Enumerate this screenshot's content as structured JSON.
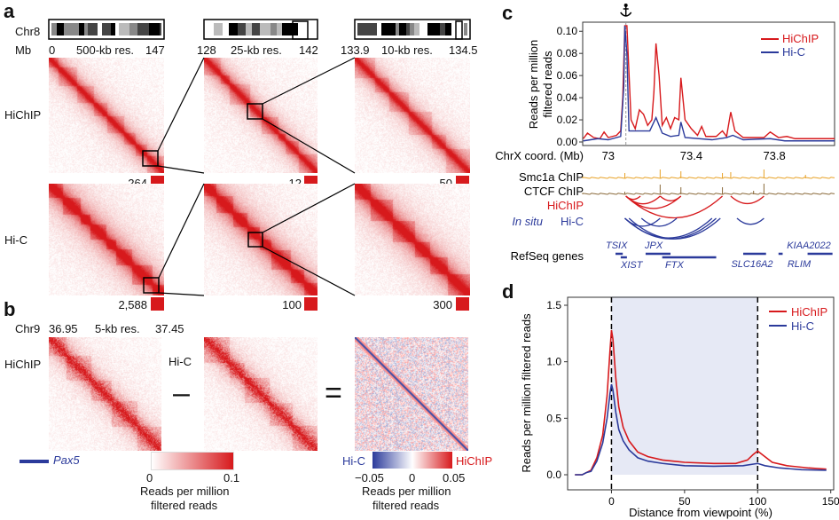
{
  "panels": {
    "a": "a",
    "b": "b",
    "c": "c",
    "d": "d"
  },
  "a": {
    "chrom": "Chr8",
    "unit": "Mb",
    "columns": [
      {
        "start": "0",
        "res": "500-kb res.",
        "end": "147",
        "max_hichip": "264",
        "max_hic": "2,588"
      },
      {
        "start": "128",
        "res": "25-kb res.",
        "end": "142",
        "max_hichip": "12",
        "max_hic": "100"
      },
      {
        "start": "133.9",
        "res": "10-kb res.",
        "end": "134.5",
        "max_hichip": "50",
        "max_hic": "300"
      }
    ],
    "rows": [
      "HiChIP",
      "Hi-C"
    ]
  },
  "b": {
    "chrom": "Chr9",
    "start": "36.95",
    "res": "5-kb res.",
    "end": "37.45",
    "label_hichip": "HiChIP",
    "label_hic": "Hi-C",
    "minus": "–",
    "equals": "=",
    "gene": "Pax5",
    "colorbar1": {
      "min": "0",
      "max": "0.1",
      "label1": "Reads per million",
      "label2": "filtered reads",
      "colors": [
        "#ffffff",
        "#d7191c"
      ]
    },
    "colorbar2": {
      "left": "Hi-C",
      "right": "HiChIP",
      "ticks": [
        "−0.05",
        "0",
        "0.05"
      ],
      "label1": "Reads per million",
      "label2": "filtered reads",
      "colors": [
        "#2b3a9b",
        "#ffffff",
        "#d7191c"
      ]
    }
  },
  "colors": {
    "hichip": "#d7191c",
    "hic": "#2b3a9b",
    "smc1a": "#e8a227",
    "ctcf": "#8a6a3a",
    "shade": "#e6e9f5"
  },
  "chart_data": [
    {
      "type": "line",
      "panel": "c",
      "ylabel": "Reads per million filtered reads",
      "ylim": [
        0,
        0.105
      ],
      "yticks": [
        "0.00",
        "0.02",
        "0.04",
        "0.06",
        "0.08",
        "0.10"
      ],
      "xlabel": "ChrX coord. (Mb)",
      "xlim": [
        72.877,
        74.09
      ],
      "xticks": [
        "73",
        "73.4",
        "73.8"
      ],
      "anchor_icon": "anchor-icon",
      "anchor": 73.085,
      "legend": "top-right",
      "series": [
        {
          "name": "HiChIP",
          "points": [
            [
              72.88,
              0.003
            ],
            [
              72.9,
              0.008
            ],
            [
              72.93,
              0.004
            ],
            [
              72.96,
              0.003
            ],
            [
              72.98,
              0.009
            ],
            [
              73.0,
              0.004
            ],
            [
              73.04,
              0.006
            ],
            [
              73.06,
              0.01
            ],
            [
              73.07,
              0.04
            ],
            [
              73.08,
              0.105
            ],
            [
              73.09,
              0.105
            ],
            [
              73.1,
              0.062
            ],
            [
              73.11,
              0.02
            ],
            [
              73.13,
              0.012
            ],
            [
              73.15,
              0.029
            ],
            [
              73.17,
              0.025
            ],
            [
              73.19,
              0.015
            ],
            [
              73.21,
              0.02
            ],
            [
              73.22,
              0.045
            ],
            [
              73.23,
              0.089
            ],
            [
              73.245,
              0.06
            ],
            [
              73.26,
              0.015
            ],
            [
              73.28,
              0.022
            ],
            [
              73.3,
              0.012
            ],
            [
              73.32,
              0.022
            ],
            [
              73.34,
              0.02
            ],
            [
              73.35,
              0.058
            ],
            [
              73.37,
              0.02
            ],
            [
              73.4,
              0.012
            ],
            [
              73.43,
              0.006
            ],
            [
              73.45,
              0.014
            ],
            [
              73.47,
              0.005
            ],
            [
              73.52,
              0.005
            ],
            [
              73.55,
              0.01
            ],
            [
              73.57,
              0.005
            ],
            [
              73.59,
              0.027
            ],
            [
              73.61,
              0.01
            ],
            [
              73.65,
              0.004
            ],
            [
              73.75,
              0.004
            ],
            [
              73.78,
              0.009
            ],
            [
              73.82,
              0.004
            ],
            [
              73.86,
              0.005
            ],
            [
              73.9,
              0.003
            ],
            [
              74.09,
              0.003
            ]
          ]
        },
        {
          "name": "Hi-C",
          "points": [
            [
              72.88,
              0.001
            ],
            [
              72.95,
              0.003
            ],
            [
              73.0,
              0.002
            ],
            [
              73.06,
              0.005
            ],
            [
              73.075,
              0.05
            ],
            [
              73.08,
              0.105
            ],
            [
              73.09,
              0.08
            ],
            [
              73.1,
              0.01
            ],
            [
              73.13,
              0.01
            ],
            [
              73.2,
              0.01
            ],
            [
              73.23,
              0.022
            ],
            [
              73.26,
              0.008
            ],
            [
              73.3,
              0.005
            ],
            [
              73.34,
              0.006
            ],
            [
              73.35,
              0.018
            ],
            [
              73.37,
              0.004
            ],
            [
              73.5,
              0.002
            ],
            [
              73.57,
              0.004
            ],
            [
              73.6,
              0.006
            ],
            [
              73.65,
              0.002
            ],
            [
              73.78,
              0.003
            ],
            [
              73.85,
              0.001
            ],
            [
              74.09,
              0.001
            ]
          ]
        }
      ],
      "tracks": {
        "smc1a": "Smc1a ChIP",
        "ctcf": "CTCF ChIP",
        "hichip": "HiChIP",
        "hic_prefix": "In situ",
        "hic": "Hi-C",
        "genes": "RefSeq genes"
      },
      "loops_hichip": [
        [
          73.085,
          73.155
        ],
        [
          73.085,
          73.25
        ],
        [
          73.085,
          73.35
        ],
        [
          73.085,
          73.55
        ],
        [
          73.25,
          73.35
        ],
        [
          73.59,
          73.75
        ]
      ],
      "loops_hic": [
        [
          73.08,
          73.25
        ],
        [
          73.16,
          73.33
        ],
        [
          73.08,
          73.5
        ],
        [
          73.08,
          73.52
        ],
        [
          73.1,
          73.54
        ],
        [
          73.62,
          73.75
        ]
      ],
      "genes": [
        {
          "name": "TSIX",
          "start": 73.035,
          "end": 73.07
        },
        {
          "name": "XIST",
          "start": 73.06,
          "end": 73.09
        },
        {
          "name": "JPX",
          "start": 73.18,
          "end": 73.3
        },
        {
          "name": "FTX",
          "start": 73.26,
          "end": 73.52
        },
        {
          "name": "SLC16A2",
          "start": 73.65,
          "end": 73.76
        },
        {
          "name": "RLIM",
          "start": 73.82,
          "end": 73.84
        },
        {
          "name": "KIAA2022",
          "start": 73.96,
          "end": 74.08
        }
      ]
    },
    {
      "type": "line",
      "panel": "d",
      "ylabel": "Reads per million filtered reads",
      "ylim": [
        0,
        1.5
      ],
      "yticks": [
        "0.0",
        "0.5",
        "1.0",
        "1.5"
      ],
      "xlabel": "Distance from viewpoint (%)",
      "xlim": [
        -30,
        152
      ],
      "xticks": [
        "0",
        "50",
        "100",
        "150"
      ],
      "vlines": [
        0,
        100
      ],
      "shaded": [
        0,
        100
      ],
      "legend": "top-right",
      "series": [
        {
          "name": "HiChIP",
          "points": [
            [
              -25,
              0
            ],
            [
              -20,
              0
            ],
            [
              -17,
              0.02
            ],
            [
              -14,
              0.04
            ],
            [
              -10,
              0.15
            ],
            [
              -6,
              0.35
            ],
            [
              -3,
              0.7
            ],
            [
              -1,
              1.1
            ],
            [
              0,
              1.28
            ],
            [
              1,
              1.2
            ],
            [
              3,
              0.85
            ],
            [
              5,
              0.6
            ],
            [
              8,
              0.42
            ],
            [
              12,
              0.3
            ],
            [
              18,
              0.2
            ],
            [
              25,
              0.16
            ],
            [
              35,
              0.13
            ],
            [
              50,
              0.11
            ],
            [
              70,
              0.1
            ],
            [
              85,
              0.1
            ],
            [
              93,
              0.13
            ],
            [
              97,
              0.18
            ],
            [
              100,
              0.21
            ],
            [
              103,
              0.18
            ],
            [
              110,
              0.11
            ],
            [
              120,
              0.08
            ],
            [
              135,
              0.06
            ],
            [
              147,
              0.05
            ]
          ]
        },
        {
          "name": "Hi-C",
          "points": [
            [
              -25,
              0
            ],
            [
              -20,
              0
            ],
            [
              -17,
              0.02
            ],
            [
              -14,
              0.03
            ],
            [
              -10,
              0.12
            ],
            [
              -6,
              0.28
            ],
            [
              -3,
              0.5
            ],
            [
              -1,
              0.72
            ],
            [
              0,
              0.8
            ],
            [
              1,
              0.75
            ],
            [
              3,
              0.55
            ],
            [
              5,
              0.4
            ],
            [
              8,
              0.3
            ],
            [
              12,
              0.22
            ],
            [
              18,
              0.15
            ],
            [
              25,
              0.12
            ],
            [
              35,
              0.1
            ],
            [
              50,
              0.08
            ],
            [
              70,
              0.075
            ],
            [
              90,
              0.08
            ],
            [
              100,
              0.1
            ],
            [
              105,
              0.08
            ],
            [
              115,
              0.06
            ],
            [
              130,
              0.045
            ],
            [
              147,
              0.04
            ]
          ]
        }
      ]
    }
  ]
}
